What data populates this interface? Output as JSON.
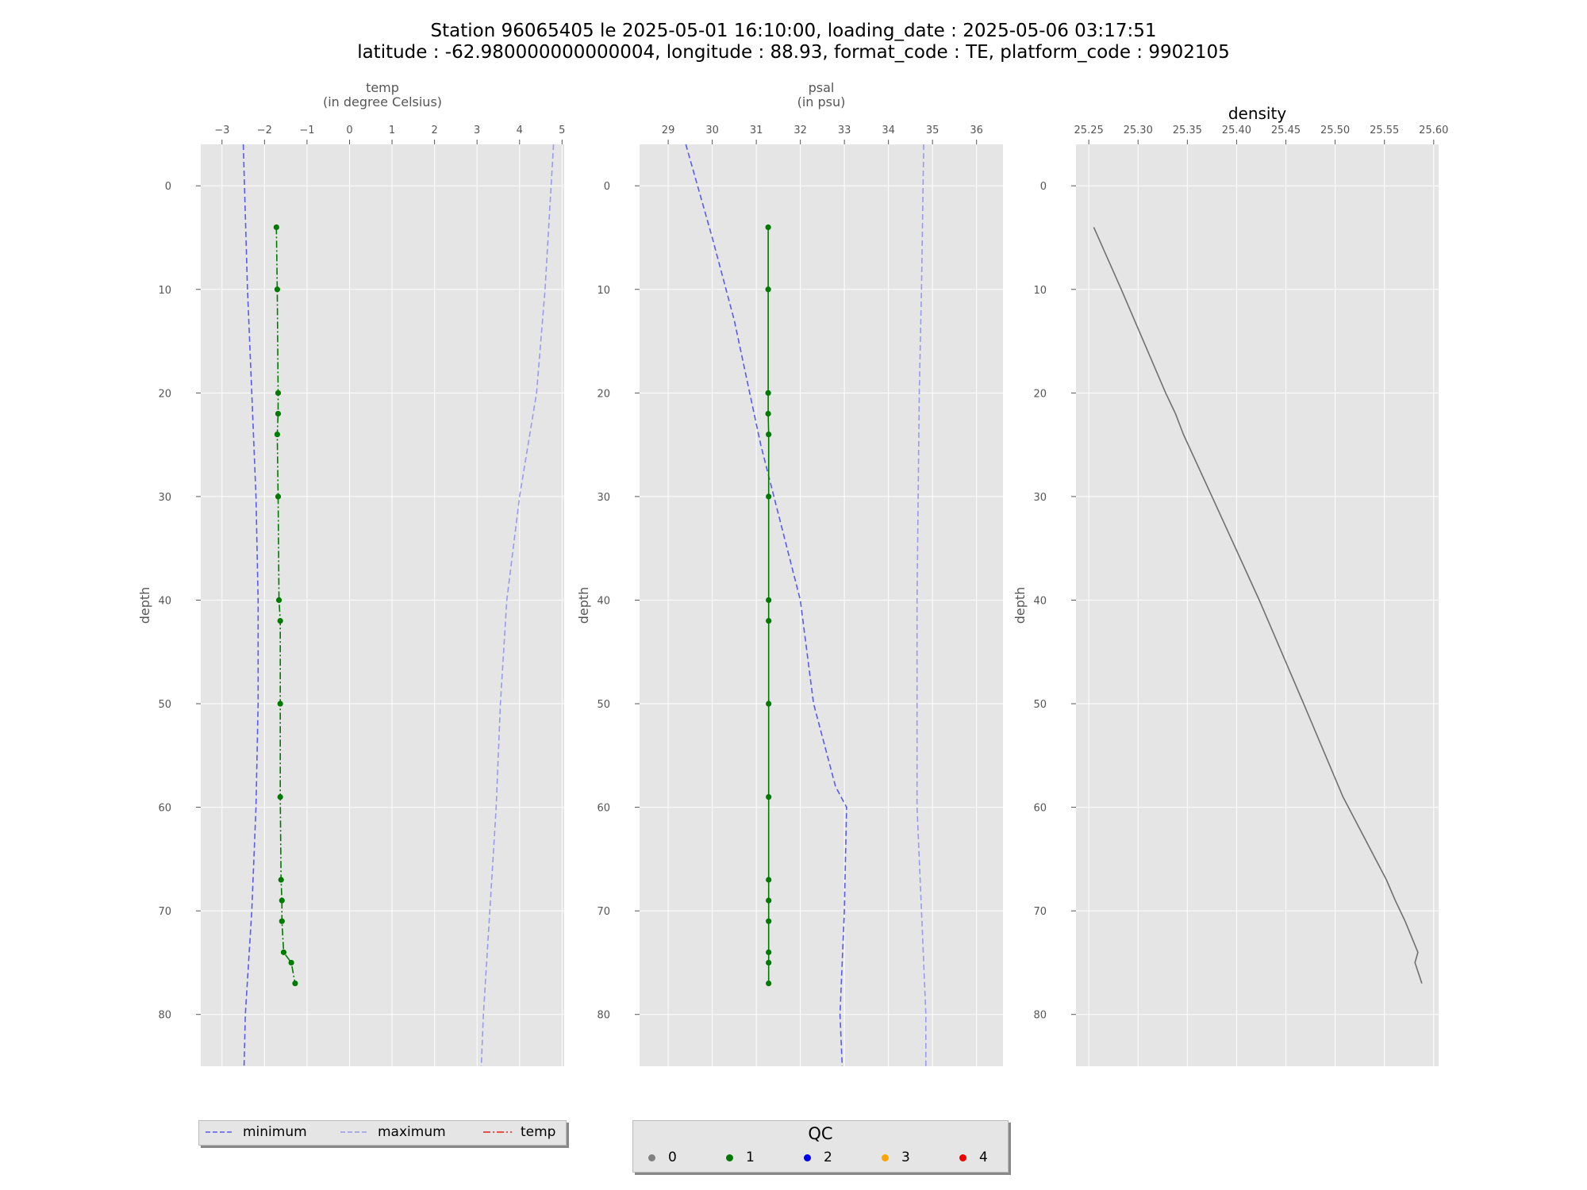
{
  "title_line1": "Station 96065405 le 2025-05-01 16:10:00, loading_date : 2025-05-06 03:17:51",
  "title_line2": "latitude : -62.980000000000004, longitude : 88.93, format_code : TE, platform_code : 9902105",
  "colors": {
    "panel_bg": "#e5e5e5",
    "grid": "#ffffff",
    "minimum": "#5a5aee",
    "maximum": "#9a9aee",
    "temp_legend": "#e8201a",
    "profile": "#007a00",
    "density": "#707070"
  },
  "legend_lines": {
    "minimum": "minimum",
    "maximum": "maximum",
    "temp": "temp"
  },
  "legend_qc": {
    "title": "QC",
    "items": [
      {
        "label": "0",
        "color": "#808080"
      },
      {
        "label": "1",
        "color": "#007a00"
      },
      {
        "label": "2",
        "color": "#0000ee"
      },
      {
        "label": "3",
        "color": "#ffa500"
      },
      {
        "label": "4",
        "color": "#ee0000"
      }
    ]
  },
  "chart_data": [
    {
      "type": "line",
      "title": "",
      "xlabel": "temp\n(in degree Celsius)",
      "ylabel": "depth",
      "xlim": [
        -3.5,
        5.05
      ],
      "ylim": [
        85,
        -4
      ],
      "xticks": [
        -3,
        -2,
        -1,
        0,
        1,
        2,
        3,
        4,
        5
      ],
      "xtick_labels": [
        "−3",
        "−2",
        "−1",
        "0",
        "1",
        "2",
        "3",
        "4",
        "5"
      ],
      "yticks": [
        0,
        10,
        20,
        30,
        40,
        50,
        60,
        70,
        80
      ],
      "x_axis_position": "top",
      "grid": true,
      "series": [
        {
          "name": "minimum",
          "style": "dashed",
          "points": [
            [
              -2.5,
              -4
            ],
            [
              -2.4,
              10
            ],
            [
              -2.3,
              20
            ],
            [
              -2.2,
              30
            ],
            [
              -2.15,
              40
            ],
            [
              -2.15,
              50
            ],
            [
              -2.2,
              60
            ],
            [
              -2.3,
              70
            ],
            [
              -2.45,
              80
            ],
            [
              -2.48,
              85
            ]
          ]
        },
        {
          "name": "maximum",
          "style": "dashed",
          "points": [
            [
              4.8,
              -4
            ],
            [
              4.6,
              10
            ],
            [
              4.4,
              20
            ],
            [
              4.0,
              30
            ],
            [
              3.7,
              40
            ],
            [
              3.55,
              50
            ],
            [
              3.45,
              60
            ],
            [
              3.3,
              70
            ],
            [
              3.15,
              80
            ],
            [
              3.1,
              85
            ]
          ]
        },
        {
          "name": "temp",
          "style": "dashdot",
          "marker_qc": 1,
          "points": [
            [
              -1.72,
              4
            ],
            [
              -1.7,
              10
            ],
            [
              -1.68,
              20
            ],
            [
              -1.68,
              22
            ],
            [
              -1.7,
              24
            ],
            [
              -1.68,
              30
            ],
            [
              -1.66,
              40
            ],
            [
              -1.63,
              42
            ],
            [
              -1.63,
              50
            ],
            [
              -1.63,
              59
            ],
            [
              -1.61,
              67
            ],
            [
              -1.59,
              69
            ],
            [
              -1.59,
              71
            ],
            [
              -1.55,
              74
            ],
            [
              -1.37,
              75
            ],
            [
              -1.28,
              77
            ]
          ]
        }
      ]
    },
    {
      "type": "line",
      "title": "",
      "xlabel": "psal\n(in psu)",
      "ylabel": "depth",
      "xlim": [
        28.35,
        36.6
      ],
      "ylim": [
        85,
        -4
      ],
      "xticks": [
        29,
        30,
        31,
        32,
        33,
        34,
        35,
        36
      ],
      "xtick_labels": [
        "29",
        "30",
        "31",
        "32",
        "33",
        "34",
        "35",
        "36"
      ],
      "yticks": [
        0,
        10,
        20,
        30,
        40,
        50,
        60,
        70,
        80
      ],
      "x_axis_position": "top",
      "grid": true,
      "series": [
        {
          "name": "minimum",
          "style": "dashed",
          "points": [
            [
              29.4,
              -4
            ],
            [
              30.0,
              5
            ],
            [
              30.5,
              13
            ],
            [
              30.85,
              20
            ],
            [
              31.1,
              25
            ],
            [
              31.4,
              30
            ],
            [
              32.0,
              40
            ],
            [
              32.3,
              50
            ],
            [
              32.8,
              58
            ],
            [
              33.05,
              60
            ],
            [
              33.0,
              70
            ],
            [
              32.9,
              80
            ],
            [
              32.95,
              85
            ]
          ]
        },
        {
          "name": "maximum",
          "style": "dashed",
          "points": [
            [
              34.8,
              -4
            ],
            [
              34.75,
              10
            ],
            [
              34.7,
              20
            ],
            [
              34.65,
              40
            ],
            [
              34.65,
              60
            ],
            [
              34.75,
              70
            ],
            [
              34.85,
              80
            ],
            [
              34.85,
              85
            ]
          ]
        },
        {
          "name": "psal",
          "style": "solid",
          "marker_qc": 1,
          "points": [
            [
              31.27,
              4
            ],
            [
              31.27,
              10
            ],
            [
              31.27,
              20
            ],
            [
              31.27,
              22
            ],
            [
              31.28,
              24
            ],
            [
              31.28,
              30
            ],
            [
              31.28,
              40
            ],
            [
              31.28,
              42
            ],
            [
              31.28,
              50
            ],
            [
              31.28,
              59
            ],
            [
              31.28,
              67
            ],
            [
              31.28,
              69
            ],
            [
              31.28,
              71
            ],
            [
              31.28,
              74
            ],
            [
              31.28,
              75
            ],
            [
              31.28,
              77
            ]
          ]
        }
      ]
    },
    {
      "type": "line",
      "title": "density",
      "xlabel": "",
      "ylabel": "depth",
      "xlim": [
        25.237,
        25.605
      ],
      "ylim": [
        85,
        -4
      ],
      "xticks": [
        25.25,
        25.3,
        25.35,
        25.4,
        25.45,
        25.5,
        25.55,
        25.6
      ],
      "xtick_labels": [
        "25.25",
        "25.30",
        "25.35",
        "25.40",
        "25.45",
        "25.50",
        "25.55",
        "25.60"
      ],
      "yticks": [
        0,
        10,
        20,
        30,
        40,
        50,
        60,
        70,
        80
      ],
      "x_axis_position": "top",
      "grid": true,
      "series": [
        {
          "name": "density",
          "style": "solid",
          "points": [
            [
              25.255,
              4
            ],
            [
              25.283,
              10
            ],
            [
              25.328,
              20
            ],
            [
              25.338,
              22
            ],
            [
              25.346,
              24
            ],
            [
              25.375,
              30
            ],
            [
              25.423,
              40
            ],
            [
              25.432,
              42
            ],
            [
              25.468,
              50
            ],
            [
              25.508,
              59
            ],
            [
              25.552,
              67
            ],
            [
              25.561,
              69
            ],
            [
              25.571,
              71
            ],
            [
              25.584,
              74
            ],
            [
              25.581,
              75
            ],
            [
              25.588,
              77
            ]
          ]
        }
      ]
    }
  ]
}
